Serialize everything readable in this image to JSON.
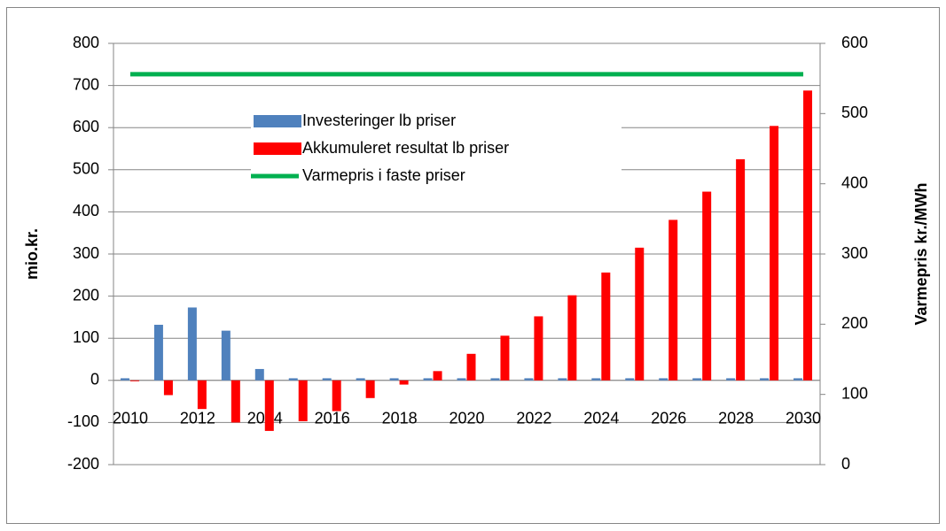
{
  "chart_data": {
    "type": "bar",
    "categories": [
      "2010",
      null,
      "2012",
      null,
      "2014",
      null,
      "2016",
      null,
      "2018",
      null,
      "2020",
      null,
      "2022",
      null,
      "2024",
      null,
      "2026",
      null,
      "2028",
      null,
      "2030"
    ],
    "series": [
      {
        "name": "Investeringer lb priser",
        "color": "#4f81bd",
        "values": [
          5,
          132,
          173,
          118,
          27,
          5,
          5,
          5,
          5,
          5,
          5,
          5,
          5,
          5,
          5,
          5,
          5,
          5,
          5,
          5,
          5
        ]
      },
      {
        "name": "Akkumuleret resultat lb priser",
        "color": "#ff0000",
        "values": [
          -2,
          -35,
          -68,
          -100,
          -120,
          -97,
          -73,
          -42,
          -10,
          22,
          63,
          106,
          152,
          202,
          256,
          315,
          381,
          448,
          525,
          604,
          688
        ]
      },
      {
        "name": "Varmepris i faste priser",
        "color": "#00b050",
        "type": "line",
        "axis": "y2",
        "values": [
          556,
          556,
          556,
          556,
          556,
          556,
          556,
          556,
          556,
          556,
          556,
          556,
          556,
          556,
          556,
          556,
          556,
          556,
          556,
          556,
          556
        ]
      }
    ],
    "ylabel": "mio.kr.",
    "y2label": "Varmepris kr./MWh",
    "ylim": [
      -200,
      800
    ],
    "yticks": [
      -200,
      -100,
      0,
      100,
      200,
      300,
      400,
      500,
      600,
      700,
      800
    ],
    "y2lim": [
      0,
      600
    ],
    "y2ticks": [
      0,
      100,
      200,
      300,
      400,
      500,
      600
    ],
    "grid": true,
    "legend": "center"
  }
}
